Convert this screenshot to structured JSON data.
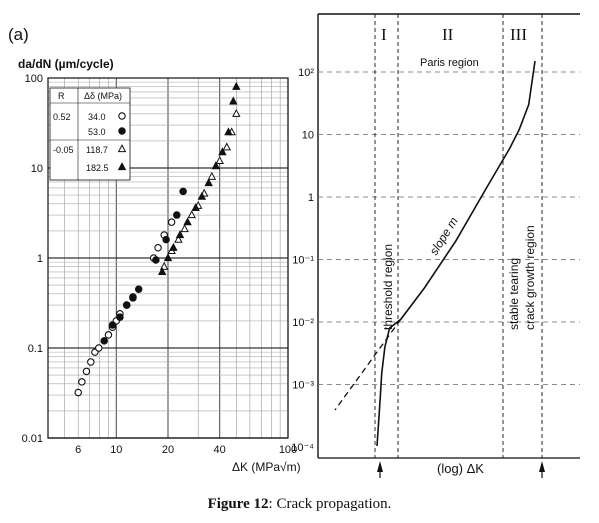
{
  "caption": {
    "label": "Figure 12",
    "text": ": Crack propagation."
  },
  "chart_data": [
    {
      "type": "scatter",
      "panel_label": "(a)",
      "ylabel": "da/dN (µm/cycle)",
      "xlabel": "ΔK (MPa√m)",
      "x_scale": "log",
      "y_scale": "log",
      "xlim": [
        4,
        100
      ],
      "ylim": [
        0.01,
        100
      ],
      "x_ticks": [
        "10",
        "20",
        "40",
        "100"
      ],
      "x_tick_values": [
        10,
        20,
        40,
        100
      ],
      "x_extra_ticks": [
        "6"
      ],
      "x_extra_tick_values": [
        6
      ],
      "y_ticks": [
        "100",
        "10",
        "1",
        "0.1",
        "0.01"
      ],
      "y_tick_values": [
        100,
        10,
        1,
        0.1,
        0.01
      ],
      "grid": true,
      "legend": {
        "placement": "top-left",
        "headers": [
          "R",
          "Δδ (MPa)"
        ],
        "rows": [
          {
            "r": "0.52",
            "ds": "34.0",
            "marker": "circle-open"
          },
          {
            "r": "",
            "ds": "53.0",
            "marker": "circle-filled"
          },
          {
            "r": "-0.05",
            "ds": "118.7",
            "marker": "triangle-open"
          },
          {
            "r": "",
            "ds": "182.5",
            "marker": "triangle-filled"
          }
        ]
      },
      "series": [
        {
          "marker": "circle-open",
          "points": [
            [
              6.0,
              0.032
            ],
            [
              6.3,
              0.042
            ],
            [
              6.7,
              0.055
            ],
            [
              7.1,
              0.07
            ],
            [
              7.5,
              0.09
            ],
            [
              7.9,
              0.1
            ],
            [
              9.0,
              0.14
            ],
            [
              9.5,
              0.17
            ],
            [
              10.0,
              0.2
            ],
            [
              10.5,
              0.24
            ],
            [
              11.5,
              0.3
            ],
            [
              12.5,
              0.37
            ],
            [
              16.5,
              1.0
            ],
            [
              17.5,
              1.3
            ],
            [
              19.0,
              1.8
            ],
            [
              21.0,
              2.5
            ]
          ]
        },
        {
          "marker": "circle-filled",
          "points": [
            [
              8.5,
              0.12
            ],
            [
              9.5,
              0.18
            ],
            [
              10.5,
              0.22
            ],
            [
              11.5,
              0.3
            ],
            [
              12.5,
              0.36
            ],
            [
              13.5,
              0.45
            ],
            [
              17.0,
              0.95
            ],
            [
              19.5,
              1.6
            ],
            [
              22.5,
              3.0
            ],
            [
              24.5,
              5.5
            ]
          ]
        },
        {
          "marker": "triangle-open",
          "points": [
            [
              19.0,
              0.8
            ],
            [
              21.0,
              1.2
            ],
            [
              23.0,
              1.6
            ],
            [
              25.0,
              2.1
            ],
            [
              27.5,
              3.0
            ],
            [
              30.0,
              3.8
            ],
            [
              32.5,
              5.2
            ],
            [
              36.0,
              8.0
            ],
            [
              40.0,
              12.0
            ],
            [
              44.0,
              17.0
            ],
            [
              47.0,
              25.0
            ],
            [
              50.0,
              40.0
            ]
          ]
        },
        {
          "marker": "triangle-filled",
          "points": [
            [
              18.5,
              0.7
            ],
            [
              20.0,
              1.0
            ],
            [
              21.5,
              1.3
            ],
            [
              23.5,
              1.8
            ],
            [
              26.0,
              2.5
            ],
            [
              29.0,
              3.6
            ],
            [
              31.5,
              4.8
            ],
            [
              34.5,
              6.8
            ],
            [
              38.0,
              10.5
            ],
            [
              41.5,
              15.0
            ],
            [
              45.0,
              25.0
            ],
            [
              48.0,
              55.0
            ],
            [
              50.0,
              80.0
            ]
          ]
        }
      ]
    },
    {
      "type": "line",
      "xlabel": "(log) ΔK",
      "y_scale": "log",
      "y_ticks": [
        "10²",
        "10",
        "1",
        "10⁻¹",
        "10⁻²",
        "10⁻³",
        "10⁻⁴"
      ],
      "y_tick_values": [
        100,
        10,
        1,
        0.1,
        0.01,
        0.001,
        0.0001
      ],
      "grid": true,
      "regions": [
        {
          "numeral": "I",
          "label": "threshold region"
        },
        {
          "numeral": "II",
          "label": "Paris region",
          "curve_label": "slope m"
        },
        {
          "numeral": "III",
          "label": "stable tearing\ncrack growth region"
        }
      ],
      "marker_arrows": [
        "I",
        "III"
      ],
      "curve_x": [
        0.0,
        0.02,
        0.03,
        0.05,
        0.08,
        0.15,
        0.3,
        0.5,
        0.7,
        0.84,
        0.9,
        0.96,
        1.0
      ],
      "curve_y": [
        0.0003,
        0.0006,
        0.0015,
        0.004,
        0.008,
        0.011,
        0.035,
        0.2,
        1.5,
        6.0,
        12.0,
        30.0,
        150.0
      ]
    }
  ]
}
